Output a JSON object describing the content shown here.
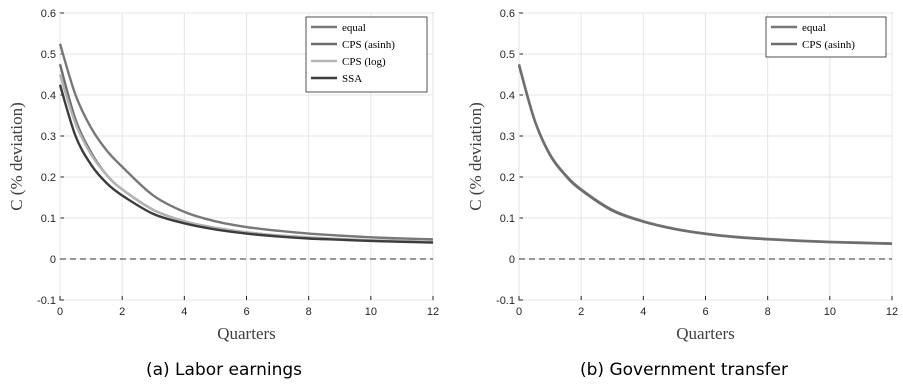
{
  "chart_data": [
    {
      "type": "line",
      "caption": "(a) Labor earnings",
      "xlabel": "Quarters",
      "ylabel": "C (% deviation)",
      "xlim": [
        0,
        12
      ],
      "ylim": [
        -0.1,
        0.6
      ],
      "xticks": [
        "0",
        "2",
        "4",
        "6",
        "8",
        "10",
        "12"
      ],
      "yticks": [
        "-0.1",
        "0",
        "0.1",
        "0.2",
        "0.3",
        "0.4",
        "0.5",
        "0.6"
      ],
      "grid": true,
      "legend_position": "top-right",
      "reference_line": {
        "y": 0,
        "style": "dashed"
      },
      "series": [
        {
          "name": "equal",
          "color": "#787878",
          "x": [
            0,
            0.5,
            1,
            1.5,
            2,
            3,
            4,
            5,
            6,
            7,
            8,
            9,
            10,
            11,
            12
          ],
          "values": [
            0.525,
            0.4,
            0.32,
            0.265,
            0.225,
            0.155,
            0.115,
            0.092,
            0.078,
            0.069,
            0.062,
            0.057,
            0.053,
            0.05,
            0.048
          ]
        },
        {
          "name": "CPS (asinh)",
          "color": "#6e6e6e",
          "x": [
            0,
            0.5,
            1,
            1.5,
            2,
            3,
            4,
            5,
            6,
            7,
            8,
            9,
            10,
            11,
            12
          ],
          "values": [
            0.475,
            0.34,
            0.26,
            0.205,
            0.17,
            0.12,
            0.092,
            0.076,
            0.065,
            0.057,
            0.052,
            0.048,
            0.045,
            0.043,
            0.041
          ]
        },
        {
          "name": "CPS (log)",
          "color": "#b4b4b4",
          "x": [
            0,
            0.5,
            1,
            1.5,
            2,
            3,
            4,
            5,
            6,
            7,
            8,
            9,
            10,
            11,
            12
          ],
          "values": [
            0.45,
            0.33,
            0.255,
            0.205,
            0.17,
            0.12,
            0.092,
            0.076,
            0.065,
            0.058,
            0.053,
            0.049,
            0.046,
            0.044,
            0.042
          ]
        },
        {
          "name": "SSA",
          "color": "#3c3c3c",
          "x": [
            0,
            0.5,
            1,
            1.5,
            2,
            3,
            4,
            5,
            6,
            7,
            8,
            9,
            10,
            11,
            12
          ],
          "values": [
            0.425,
            0.3,
            0.23,
            0.185,
            0.155,
            0.11,
            0.087,
            0.072,
            0.062,
            0.055,
            0.05,
            0.047,
            0.044,
            0.042,
            0.04
          ]
        }
      ]
    },
    {
      "type": "line",
      "caption": "(b) Government transfer",
      "xlabel": "Quarters",
      "ylabel": "C (% deviation)",
      "xlim": [
        0,
        12
      ],
      "ylim": [
        -0.1,
        0.6
      ],
      "xticks": [
        "0",
        "2",
        "4",
        "6",
        "8",
        "10",
        "12"
      ],
      "yticks": [
        "-0.1",
        "0",
        "0.1",
        "0.2",
        "0.3",
        "0.4",
        "0.5",
        "0.6"
      ],
      "grid": true,
      "legend_position": "top-right",
      "reference_line": {
        "y": 0,
        "style": "dashed"
      },
      "series": [
        {
          "name": "equal",
          "color": "#787878",
          "x": [
            0,
            0.5,
            1,
            1.5,
            2,
            3,
            4,
            5,
            6,
            7,
            8,
            9,
            10,
            11,
            12
          ],
          "values": [
            0.475,
            0.34,
            0.255,
            0.205,
            0.17,
            0.12,
            0.092,
            0.074,
            0.062,
            0.054,
            0.049,
            0.045,
            0.042,
            0.04,
            0.038
          ]
        },
        {
          "name": "CPS (asinh)",
          "color": "#6e6e6e",
          "x": [
            0,
            0.5,
            1,
            1.5,
            2,
            3,
            4,
            5,
            6,
            7,
            8,
            9,
            10,
            11,
            12
          ],
          "values": [
            0.472,
            0.338,
            0.253,
            0.203,
            0.168,
            0.118,
            0.091,
            0.073,
            0.061,
            0.053,
            0.048,
            0.044,
            0.041,
            0.039,
            0.037
          ]
        }
      ]
    }
  ]
}
